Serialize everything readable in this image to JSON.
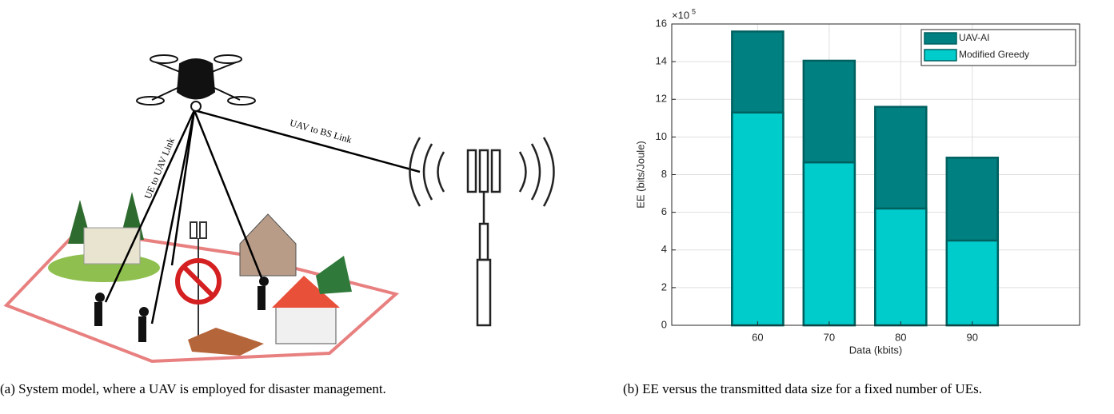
{
  "figure_a": {
    "uav_bs_link": "UAV to BS Link",
    "ue_uav_link": "UE to UAV Link"
  },
  "captions": {
    "a": "(a) System model, where a UAV is employed for disaster management.",
    "b": "(b) EE versus the transmitted data size for a fixed number of UEs."
  },
  "chart_data": {
    "type": "bar",
    "xlabel": "Data (kbits)",
    "ylabel": "EE (bits/Joule)",
    "y_multiplier_base": "×10",
    "y_multiplier_exponent": "5",
    "x": [
      60,
      70,
      80,
      90
    ],
    "series": [
      {
        "name": "UAV-AI",
        "color": "#008080",
        "values": [
          15.6,
          14.05,
          11.6,
          8.9
        ]
      },
      {
        "name": "Modified Greedy",
        "color": "#00cccc",
        "values": [
          11.3,
          8.65,
          6.2,
          4.5
        ]
      }
    ],
    "xlim": [
      48,
      105
    ],
    "xticks": [
      60,
      70,
      80,
      90
    ],
    "ylim": [
      0,
      16
    ],
    "yticks": [
      0,
      2,
      4,
      6,
      8,
      10,
      12,
      14,
      16
    ],
    "grid": true,
    "legend": "upper right"
  }
}
